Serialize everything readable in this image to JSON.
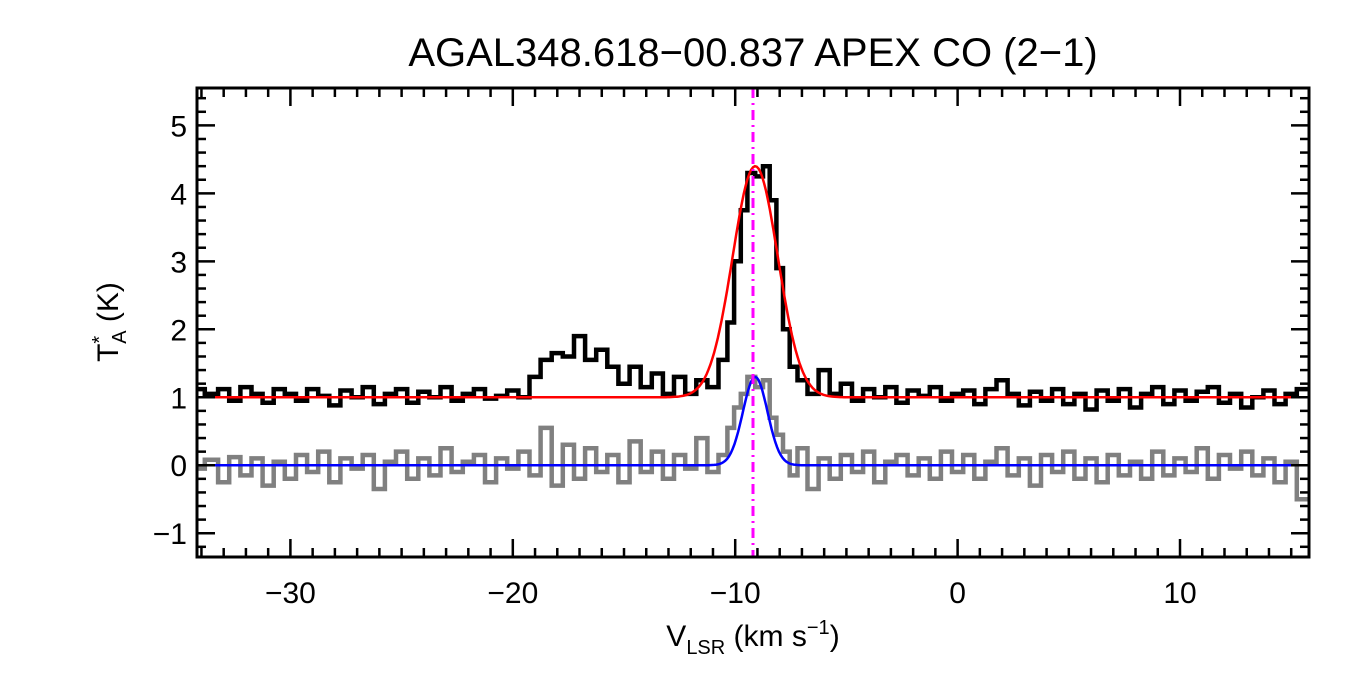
{
  "chart_data": {
    "type": "line",
    "title": "AGAL348.618−00.837  APEX CO (2−1)",
    "xlabel": {
      "main": "V",
      "sub": "LSR",
      "rest": " (km s",
      "sup": "−1",
      "end": ")"
    },
    "ylabel": {
      "main": "T",
      "sup": "*",
      "sub": "A",
      "rest": " (K)"
    },
    "xlim": [
      -34.2,
      15.8
    ],
    "ylim": [
      -1.35,
      5.55
    ],
    "x_ticks": [
      -30,
      -20,
      -10,
      0,
      10
    ],
    "x_tick_labels": [
      "−30",
      "−20",
      "−10",
      "0",
      "10"
    ],
    "y_ticks": [
      -1,
      0,
      1,
      2,
      3,
      4,
      5
    ],
    "y_tick_labels": [
      "−1",
      "0",
      "1",
      "2",
      "3",
      "4",
      "5"
    ],
    "vline": {
      "x": -9.2,
      "color": "#ff00ff",
      "style": "dash-dot"
    },
    "series": [
      {
        "kind": "histogram",
        "color": "#000000",
        "points": [
          [
            -34.2,
            1.12
          ],
          [
            -33.5,
            1.05
          ],
          [
            -33.0,
            1.12
          ],
          [
            -32.5,
            0.95
          ],
          [
            -32.0,
            1.15
          ],
          [
            -31.5,
            1.05
          ],
          [
            -31.0,
            0.92
          ],
          [
            -30.5,
            1.12
          ],
          [
            -30.0,
            1.05
          ],
          [
            -29.5,
            0.95
          ],
          [
            -29.0,
            1.12
          ],
          [
            -28.5,
            1.02
          ],
          [
            -28.0,
            0.88
          ],
          [
            -27.5,
            1.1
          ],
          [
            -27.0,
            1.0
          ],
          [
            -26.5,
            1.15
          ],
          [
            -26.0,
            0.9
          ],
          [
            -25.5,
            1.05
          ],
          [
            -25.0,
            1.12
          ],
          [
            -24.5,
            0.92
          ],
          [
            -24.0,
            1.08
          ],
          [
            -23.5,
            1.0
          ],
          [
            -23.0,
            1.15
          ],
          [
            -22.5,
            0.95
          ],
          [
            -22.0,
            1.05
          ],
          [
            -21.5,
            1.12
          ],
          [
            -21.0,
            0.98
          ],
          [
            -20.5,
            1.02
          ],
          [
            -20.0,
            1.1
          ],
          [
            -19.5,
            1.0
          ],
          [
            -19.0,
            1.3
          ],
          [
            -18.5,
            1.55
          ],
          [
            -18.0,
            1.65
          ],
          [
            -17.5,
            1.6
          ],
          [
            -17.0,
            1.9
          ],
          [
            -16.5,
            1.55
          ],
          [
            -16.0,
            1.7
          ],
          [
            -15.5,
            1.45
          ],
          [
            -15.0,
            1.2
          ],
          [
            -14.5,
            1.45
          ],
          [
            -14.0,
            1.15
          ],
          [
            -13.5,
            1.35
          ],
          [
            -13.0,
            1.05
          ],
          [
            -12.5,
            1.3
          ],
          [
            -12.0,
            1.05
          ],
          [
            -11.5,
            1.25
          ],
          [
            -11.0,
            1.15
          ],
          [
            -10.5,
            1.55
          ],
          [
            -10.2,
            2.1
          ],
          [
            -9.9,
            3.0
          ],
          [
            -9.6,
            3.75
          ],
          [
            -9.3,
            4.3
          ],
          [
            -8.9,
            4.25
          ],
          [
            -8.6,
            4.4
          ],
          [
            -8.3,
            3.9
          ],
          [
            -8.0,
            2.9
          ],
          [
            -7.7,
            2.0
          ],
          [
            -7.4,
            1.45
          ],
          [
            -7.0,
            1.25
          ],
          [
            -6.5,
            1.05
          ],
          [
            -6.0,
            1.4
          ],
          [
            -5.5,
            1.05
          ],
          [
            -5.0,
            1.2
          ],
          [
            -4.5,
            0.95
          ],
          [
            -4.0,
            1.12
          ],
          [
            -3.5,
            1.0
          ],
          [
            -3.0,
            1.15
          ],
          [
            -2.5,
            0.92
          ],
          [
            -2.0,
            1.1
          ],
          [
            -1.5,
            1.02
          ],
          [
            -1.0,
            1.15
          ],
          [
            -0.5,
            0.95
          ],
          [
            0.0,
            1.05
          ],
          [
            0.5,
            1.1
          ],
          [
            1.0,
            0.9
          ],
          [
            1.5,
            1.12
          ],
          [
            2.0,
            1.25
          ],
          [
            2.5,
            1.05
          ],
          [
            3.0,
            0.88
          ],
          [
            3.5,
            1.08
          ],
          [
            4.0,
            0.95
          ],
          [
            4.5,
            1.12
          ],
          [
            5.0,
            0.9
          ],
          [
            5.5,
            1.05
          ],
          [
            6.0,
            0.82
          ],
          [
            6.5,
            1.1
          ],
          [
            7.0,
            0.95
          ],
          [
            7.5,
            1.12
          ],
          [
            8.0,
            0.85
          ],
          [
            8.5,
            1.05
          ],
          [
            9.0,
            1.15
          ],
          [
            9.5,
            0.9
          ],
          [
            10.0,
            1.1
          ],
          [
            10.5,
            0.95
          ],
          [
            11.0,
            1.08
          ],
          [
            11.5,
            1.15
          ],
          [
            12.0,
            0.92
          ],
          [
            12.5,
            1.05
          ],
          [
            13.0,
            0.85
          ],
          [
            13.5,
            1.0
          ],
          [
            14.0,
            1.1
          ],
          [
            14.5,
            0.9
          ],
          [
            15.0,
            1.05
          ],
          [
            15.5,
            1.12
          ]
        ]
      },
      {
        "kind": "histogram",
        "color": "#808080",
        "points": [
          [
            -34.2,
            -0.05
          ],
          [
            -33.5,
            0.08
          ],
          [
            -33.0,
            -0.25
          ],
          [
            -32.5,
            0.12
          ],
          [
            -32.0,
            -0.15
          ],
          [
            -31.5,
            0.1
          ],
          [
            -31.0,
            -0.3
          ],
          [
            -30.5,
            0.05
          ],
          [
            -30.0,
            -0.2
          ],
          [
            -29.5,
            0.15
          ],
          [
            -29.0,
            -0.1
          ],
          [
            -28.5,
            0.2
          ],
          [
            -28.0,
            -0.25
          ],
          [
            -27.5,
            0.1
          ],
          [
            -27.0,
            -0.05
          ],
          [
            -26.5,
            0.15
          ],
          [
            -26.0,
            -0.35
          ],
          [
            -25.5,
            0.05
          ],
          [
            -25.0,
            0.2
          ],
          [
            -24.5,
            -0.2
          ],
          [
            -24.0,
            0.1
          ],
          [
            -23.5,
            -0.15
          ],
          [
            -23.0,
            0.25
          ],
          [
            -22.5,
            -0.1
          ],
          [
            -22.0,
            0.05
          ],
          [
            -21.5,
            0.15
          ],
          [
            -21.0,
            -0.25
          ],
          [
            -20.5,
            0.1
          ],
          [
            -20.0,
            -0.05
          ],
          [
            -19.5,
            0.2
          ],
          [
            -19.0,
            -0.15
          ],
          [
            -18.5,
            0.55
          ],
          [
            -18.0,
            -0.3
          ],
          [
            -17.5,
            0.3
          ],
          [
            -17.0,
            -0.2
          ],
          [
            -16.5,
            0.25
          ],
          [
            -16.0,
            -0.1
          ],
          [
            -15.5,
            0.15
          ],
          [
            -15.0,
            -0.25
          ],
          [
            -14.5,
            0.35
          ],
          [
            -14.0,
            -0.1
          ],
          [
            -13.5,
            0.2
          ],
          [
            -13.0,
            -0.2
          ],
          [
            -12.5,
            0.15
          ],
          [
            -12.0,
            -0.05
          ],
          [
            -11.5,
            0.4
          ],
          [
            -11.0,
            -0.1
          ],
          [
            -10.5,
            0.15
          ],
          [
            -10.2,
            0.55
          ],
          [
            -9.9,
            0.85
          ],
          [
            -9.6,
            1.05
          ],
          [
            -9.3,
            1.3
          ],
          [
            -8.9,
            1.15
          ],
          [
            -8.6,
            1.25
          ],
          [
            -8.3,
            0.7
          ],
          [
            -8.0,
            0.45
          ],
          [
            -7.7,
            0.2
          ],
          [
            -7.4,
            -0.15
          ],
          [
            -7.0,
            0.25
          ],
          [
            -6.5,
            -0.35
          ],
          [
            -6.0,
            0.1
          ],
          [
            -5.5,
            -0.2
          ],
          [
            -5.0,
            0.15
          ],
          [
            -4.5,
            -0.1
          ],
          [
            -4.0,
            0.2
          ],
          [
            -3.5,
            -0.25
          ],
          [
            -3.0,
            0.05
          ],
          [
            -2.5,
            0.15
          ],
          [
            -2.0,
            -0.15
          ],
          [
            -1.5,
            0.1
          ],
          [
            -1.0,
            -0.2
          ],
          [
            -0.5,
            0.2
          ],
          [
            0.0,
            -0.1
          ],
          [
            0.5,
            0.15
          ],
          [
            1.0,
            -0.2
          ],
          [
            1.5,
            0.05
          ],
          [
            2.0,
            0.25
          ],
          [
            2.5,
            -0.15
          ],
          [
            3.0,
            0.1
          ],
          [
            3.5,
            -0.3
          ],
          [
            4.0,
            0.15
          ],
          [
            4.5,
            -0.1
          ],
          [
            5.0,
            0.2
          ],
          [
            5.5,
            -0.2
          ],
          [
            6.0,
            0.1
          ],
          [
            6.5,
            -0.25
          ],
          [
            7.0,
            0.15
          ],
          [
            7.5,
            -0.15
          ],
          [
            8.0,
            0.05
          ],
          [
            8.5,
            -0.2
          ],
          [
            9.0,
            0.2
          ],
          [
            9.5,
            -0.15
          ],
          [
            10.0,
            0.1
          ],
          [
            10.5,
            -0.1
          ],
          [
            11.0,
            0.25
          ],
          [
            11.5,
            -0.2
          ],
          [
            12.0,
            0.15
          ],
          [
            12.5,
            -0.05
          ],
          [
            13.0,
            0.2
          ],
          [
            13.5,
            -0.15
          ],
          [
            14.0,
            0.1
          ],
          [
            14.5,
            -0.25
          ],
          [
            15.0,
            0.05
          ],
          [
            15.5,
            -0.5
          ]
        ]
      },
      {
        "kind": "gaussian",
        "color": "#ff0000",
        "baseline": 1.0,
        "amplitude": 3.4,
        "center": -9.1,
        "fwhm": 2.4
      },
      {
        "kind": "gaussian",
        "color": "#0000ff",
        "baseline": 0.0,
        "amplitude": 1.3,
        "center": -9.1,
        "fwhm": 1.3
      }
    ]
  }
}
